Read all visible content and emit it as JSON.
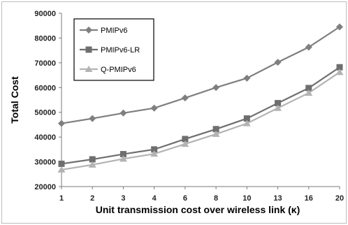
{
  "chart_data": {
    "type": "line",
    "title": "",
    "xlabel": "Unit transmission  cost over wireless link (κ)",
    "ylabel": "Total Cost",
    "categories": [
      "1",
      "2",
      "3",
      "4",
      "6",
      "8",
      "10",
      "13",
      "16",
      "20"
    ],
    "ylim": [
      20000,
      90000
    ],
    "yticks": [
      20000,
      30000,
      40000,
      50000,
      60000,
      70000,
      80000,
      90000
    ],
    "grid": false,
    "legend_position": "top-left",
    "series": [
      {
        "name": "PMIPv6",
        "marker": "diamond",
        "color": "#7f7f7f",
        "values": [
          45500,
          47500,
          49700,
          51700,
          55800,
          60000,
          63800,
          70200,
          76300,
          84500
        ]
      },
      {
        "name": "PMIPv6-LR",
        "marker": "square",
        "color": "#6e6e6e",
        "values": [
          29200,
          31000,
          33100,
          35000,
          39200,
          43200,
          47500,
          53700,
          59800,
          68200
        ]
      },
      {
        "name": "Q-PMIPv6",
        "marker": "triangle",
        "color": "#b3b3b3",
        "values": [
          26800,
          28800,
          31200,
          33200,
          37200,
          41200,
          45500,
          51700,
          57800,
          66200
        ]
      }
    ]
  }
}
